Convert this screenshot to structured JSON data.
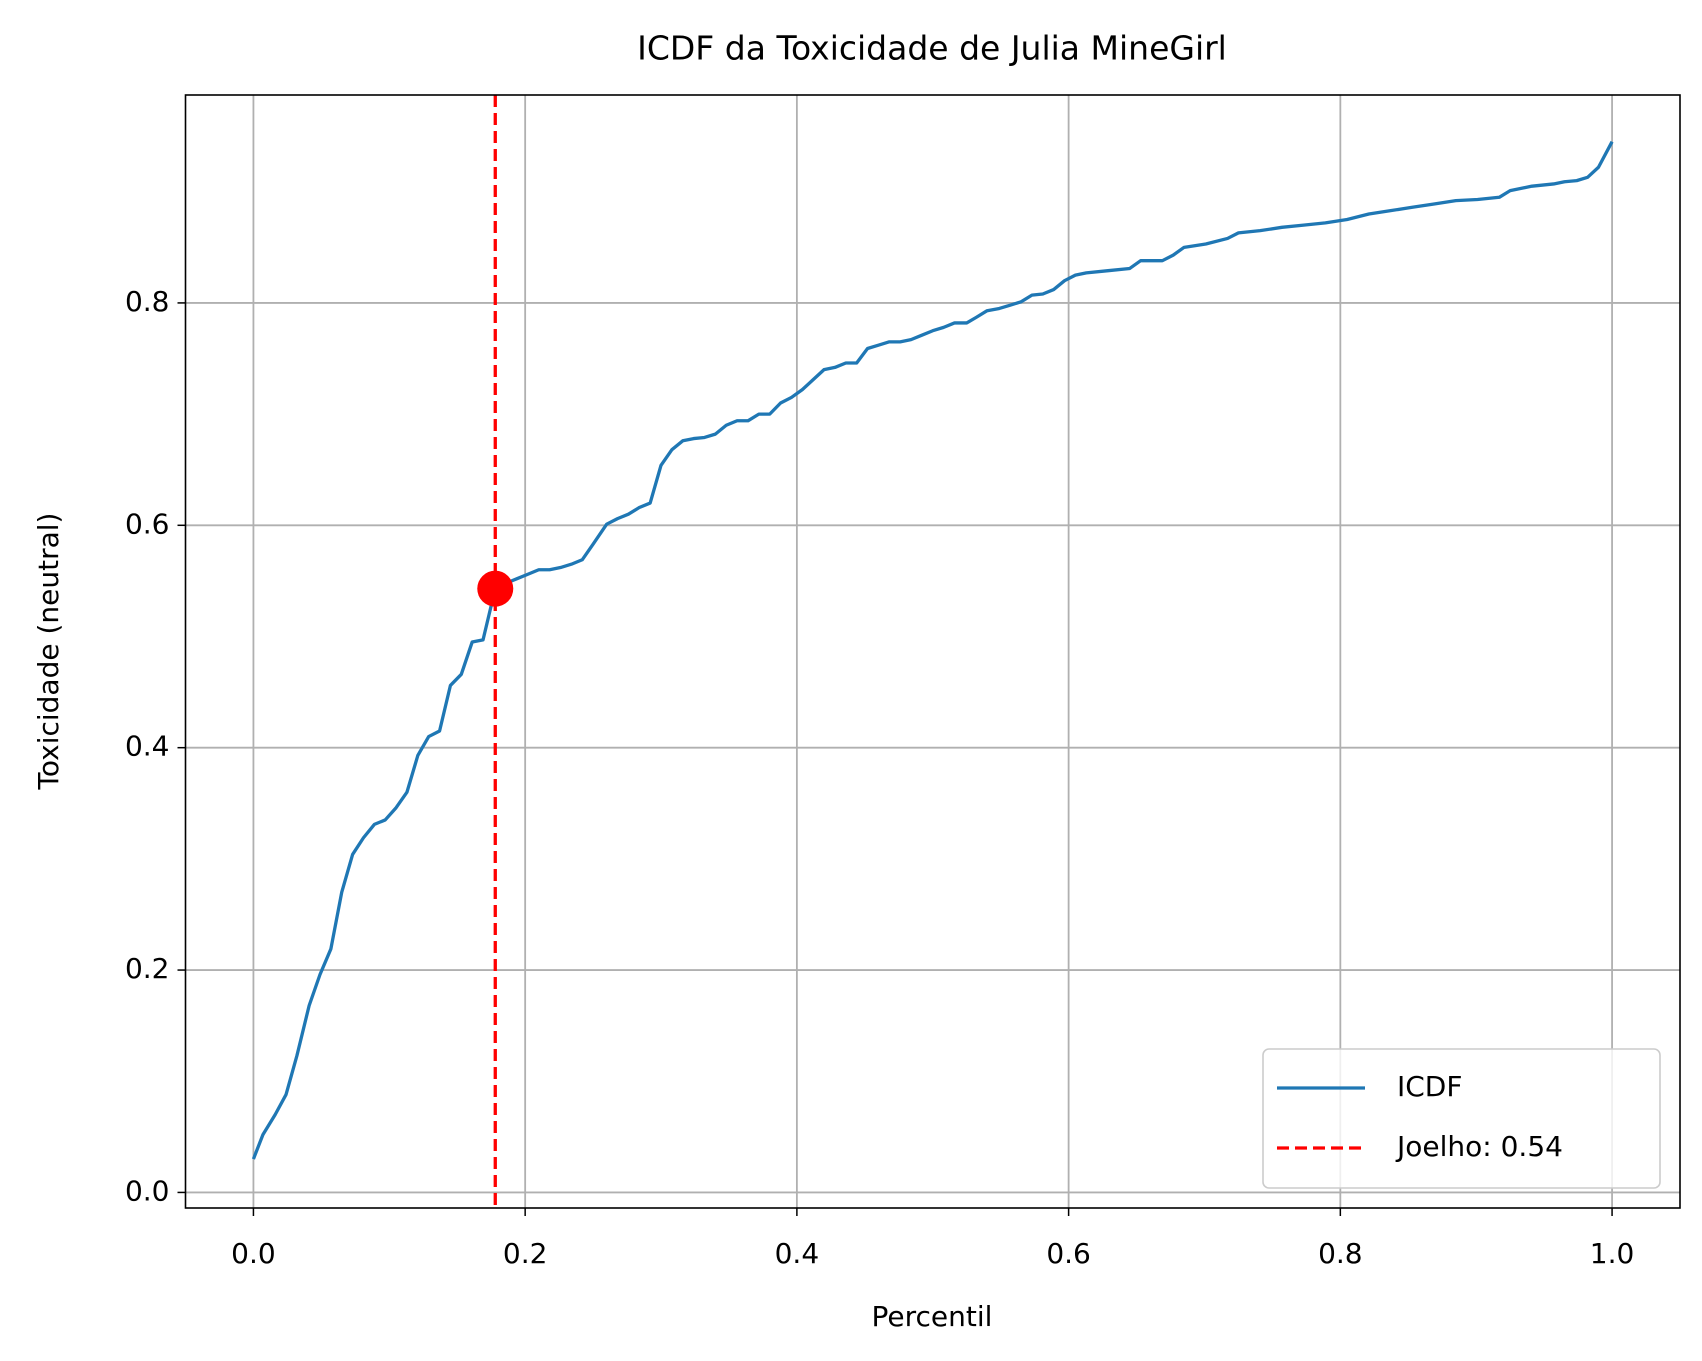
{
  "chart_data": {
    "type": "line",
    "title": "ICDF da Toxicidade de Julia MineGirl",
    "xlabel": "Percentil",
    "ylabel": "Toxicidade (neutral)",
    "xlim": [
      -0.05,
      1.05
    ],
    "ylim": [
      -0.014,
      0.987
    ],
    "xticks": [
      {
        "value": 0,
        "label": "0.0"
      },
      0.2,
      0.4,
      0.6,
      0.8,
      {
        "value": 1,
        "label": "1.0"
      }
    ],
    "yticks": [
      {
        "value": 0,
        "label": "0.0"
      },
      0.2,
      0.4,
      0.6,
      0.8
    ],
    "grid": true,
    "legend": "lower right",
    "series": [
      {
        "name": "ICDF",
        "color": "#1f77b4",
        "x": [
          0,
          0.007,
          0.016,
          0.024,
          0.032,
          0.041,
          0.049,
          0.057,
          0.065,
          0.073,
          0.081,
          0.089,
          0.097,
          0.105,
          0.113,
          0.121,
          0.129,
          0.137,
          0.145,
          0.153,
          0.161,
          0.169,
          0.178,
          0.186,
          0.194,
          0.202,
          0.21,
          0.218,
          0.226,
          0.234,
          0.242,
          0.25,
          0.26,
          0.268,
          0.276,
          0.284,
          0.292,
          0.3,
          0.308,
          0.316,
          0.324,
          0.332,
          0.34,
          0.348,
          0.356,
          0.364,
          0.372,
          0.38,
          0.388,
          0.396,
          0.404,
          0.412,
          0.42,
          0.428,
          0.436,
          0.444,
          0.452,
          0.46,
          0.468,
          0.476,
          0.484,
          0.492,
          0.5,
          0.508,
          0.516,
          0.525,
          0.532,
          0.54,
          0.549,
          0.557,
          0.565,
          0.573,
          0.581,
          0.589,
          0.597,
          0.605,
          0.613,
          0.629,
          0.645,
          0.653,
          0.669,
          0.677,
          0.685,
          0.701,
          0.717,
          0.725,
          0.741,
          0.757,
          0.773,
          0.789,
          0.805,
          0.821,
          0.837,
          0.853,
          0.869,
          0.885,
          0.901,
          0.917,
          0.925,
          0.941,
          0.957,
          0.965,
          0.974,
          0.982,
          0.99,
          1
        ],
        "values": [
          0.03,
          0.052,
          0.07,
          0.088,
          0.123,
          0.168,
          0.196,
          0.219,
          0.27,
          0.304,
          0.319,
          0.331,
          0.335,
          0.346,
          0.36,
          0.393,
          0.41,
          0.415,
          0.456,
          0.466,
          0.495,
          0.497,
          0.543,
          0.548,
          0.552,
          0.556,
          0.56,
          0.56,
          0.562,
          0.565,
          0.569,
          0.583,
          0.601,
          0.606,
          0.61,
          0.616,
          0.62,
          0.654,
          0.668,
          0.676,
          0.678,
          0.679,
          0.682,
          0.69,
          0.694,
          0.694,
          0.7,
          0.7,
          0.71,
          0.715,
          0.722,
          0.731,
          0.74,
          0.742,
          0.746,
          0.746,
          0.759,
          0.762,
          0.765,
          0.765,
          0.767,
          0.771,
          0.775,
          0.778,
          0.782,
          0.782,
          0.787,
          0.793,
          0.795,
          0.798,
          0.801,
          0.807,
          0.808,
          0.812,
          0.82,
          0.825,
          0.827,
          0.829,
          0.831,
          0.838,
          0.838,
          0.843,
          0.85,
          0.853,
          0.858,
          0.863,
          0.865,
          0.868,
          0.87,
          0.872,
          0.875,
          0.88,
          0.883,
          0.886,
          0.889,
          0.892,
          0.893,
          0.895,
          0.901,
          0.905,
          0.907,
          0.909,
          0.91,
          0.913,
          0.922,
          0.945
        ]
      }
    ],
    "knee": {
      "name": "Joelho: 0.54",
      "color": "#ff0000",
      "x": 0.178,
      "y": 0.543
    }
  }
}
